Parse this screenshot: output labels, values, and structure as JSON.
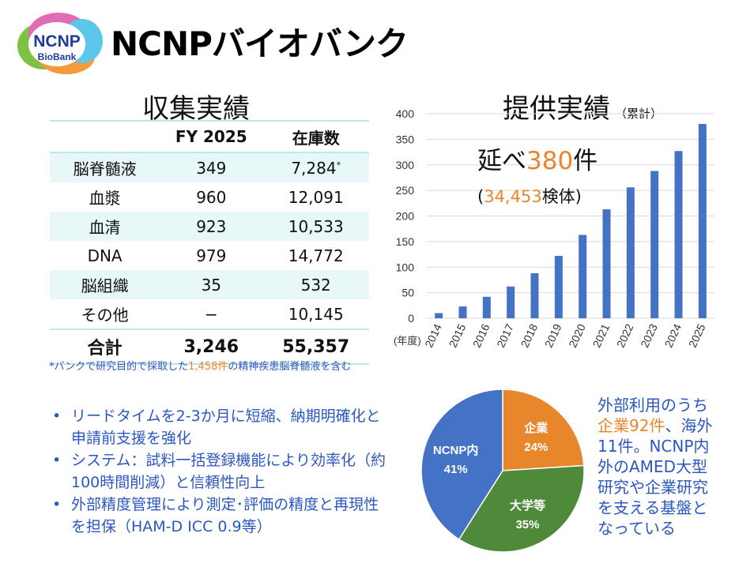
{
  "page": {
    "title": "NCNPバイオバンク",
    "logo": {
      "line1": "NCNP",
      "line2": "BioBank"
    }
  },
  "collection": {
    "title": "収集実績",
    "headers": [
      "",
      "FY 2025",
      "在庫数"
    ],
    "rows": [
      {
        "name": "脳脊髄液",
        "fy": "349",
        "stock": "7,284",
        "note": "*"
      },
      {
        "name": "血漿",
        "fy": "960",
        "stock": "12,091"
      },
      {
        "name": "血清",
        "fy": "923",
        "stock": "10,533"
      },
      {
        "name": "DNA",
        "fy": "979",
        "stock": "14,772"
      },
      {
        "name": "脳組織",
        "fy": "35",
        "stock": "532"
      },
      {
        "name": "その他",
        "fy": "−",
        "stock": "10,145"
      }
    ],
    "total": {
      "name": "合計",
      "fy": "3,246",
      "stock": "55,357"
    },
    "footnote": {
      "pre": "*バンクで研究目的で採取した",
      "highlight": "1,458件",
      "post": "の精神疾患脳脊髄液を含む"
    }
  },
  "bullets": [
    "リードタイムを2-3か月に短縮、納期明確化と申請前支援を強化",
    "システム：試料一括登録機能により効率化（約100時間削減）と信頼性向上",
    "外部精度管理により測定･評価の精度と再現性を担保（HAM-D ICC 0.9等）"
  ],
  "provision": {
    "title": "提供実績",
    "title_sub": "（累計）",
    "callout": {
      "pre": "延べ",
      "count": "380",
      "unit": "件",
      "sub_open": "(",
      "sub_count": "34,453",
      "sub_unit": "検体)"
    }
  },
  "colors": {
    "bar": "#4472c4",
    "orange": "#e8862c",
    "green": "#4f8a3a",
    "blue_text": "#2b57c0",
    "table_shade": "#e8f7f8"
  },
  "chart_data": [
    {
      "type": "bar",
      "title": "提供実績",
      "xlabel": "(年度)",
      "ylabel": "",
      "categories": [
        "2014",
        "2015",
        "2016",
        "2017",
        "2018",
        "2019",
        "2020",
        "2021",
        "2022",
        "2023",
        "2024",
        "2025"
      ],
      "values": [
        10,
        23,
        42,
        62,
        88,
        122,
        163,
        213,
        256,
        288,
        327,
        380
      ],
      "ylim": [
        0,
        400
      ],
      "yticks": [
        0,
        50,
        100,
        150,
        200,
        250,
        300,
        350,
        400
      ],
      "grid": true
    },
    {
      "type": "pie",
      "title": "",
      "slices": [
        {
          "label": "企業",
          "value": 24,
          "display": "24%",
          "color": "#e8862c"
        },
        {
          "label": "大学等",
          "value": 35,
          "display": "35%",
          "color": "#4f8a3a"
        },
        {
          "label": "NCNP内",
          "value": 41,
          "display": "41%",
          "color": "#4472c4"
        }
      ]
    }
  ],
  "pie_text": {
    "l1": "外部利用のうち",
    "l2_hl": "企業92件",
    "l2_rest": "、海外",
    "l3": "11件。NCNP内",
    "l4": "外のAMED大型",
    "l5": "研究や企業研究",
    "l6": "を支える基盤と",
    "l7": "なっている"
  }
}
